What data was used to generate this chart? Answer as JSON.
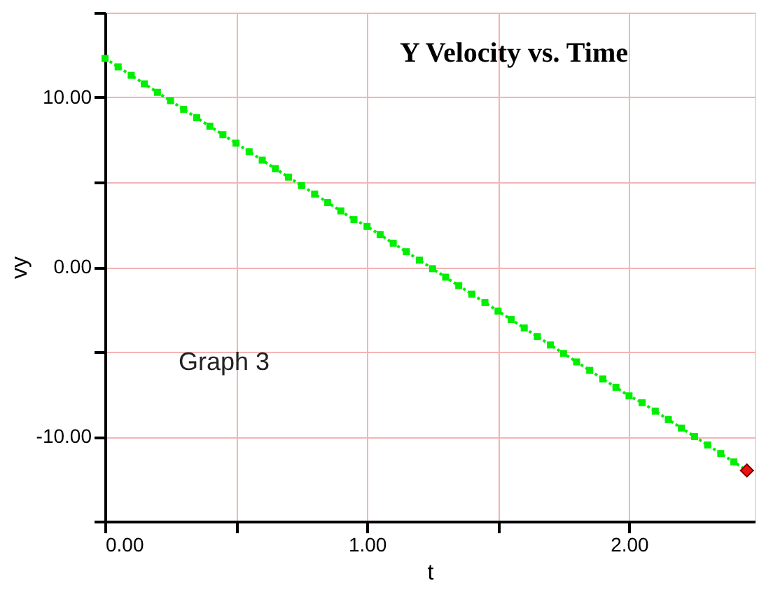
{
  "chart_data": {
    "type": "line",
    "title": "Y Velocity vs. Time",
    "xlabel": "t",
    "ylabel": "vy",
    "xlim": [
      0,
      2.48
    ],
    "ylim": [
      -15,
      15
    ],
    "xticks": [
      {
        "value": 0,
        "label": "0.00"
      },
      {
        "value": 0.5,
        "label": null
      },
      {
        "value": 1,
        "label": "1.00"
      },
      {
        "value": 1.5,
        "label": null
      },
      {
        "value": 2,
        "label": "2.00"
      }
    ],
    "yticks": [
      {
        "value": -15,
        "label": null
      },
      {
        "value": -10,
        "label": "-10.00"
      },
      {
        "value": -5,
        "label": null
      },
      {
        "value": 0,
        "label": "0.00"
      },
      {
        "value": 5,
        "label": null
      },
      {
        "value": 10,
        "label": "10.00"
      },
      {
        "value": 15,
        "label": null
      }
    ],
    "grid": true,
    "line_style": "dotted",
    "annotations": [
      "Graph 3"
    ],
    "series": [
      {
        "color": "#00ee00",
        "marker": "square",
        "x": [
          0,
          0.05,
          0.1,
          0.15,
          0.2,
          0.25,
          0.3,
          0.35,
          0.4,
          0.45,
          0.5,
          0.55,
          0.6,
          0.65,
          0.7,
          0.75,
          0.8,
          0.85,
          0.9,
          0.95,
          1,
          1.05,
          1.1,
          1.15,
          1.2,
          1.25,
          1.3,
          1.35,
          1.4,
          1.45,
          1.5,
          1.55,
          1.6,
          1.65,
          1.7,
          1.75,
          1.8,
          1.85,
          1.9,
          1.95,
          2,
          2.05,
          2.1,
          2.15,
          2.2,
          2.25,
          2.3,
          2.35,
          2.4,
          2.45
        ],
        "values": [
          12.3,
          11.8,
          11.3,
          10.8,
          10.3,
          9.8,
          9.3,
          8.8,
          8.3,
          7.8,
          7.3,
          6.8,
          6.3,
          5.8,
          5.3,
          4.8,
          4.3,
          3.8,
          3.3,
          2.8,
          2.4,
          1.9,
          1.4,
          0.9,
          0.4,
          -0.1,
          -0.6,
          -1.1,
          -1.6,
          -2.1,
          -2.6,
          -3.1,
          -3.6,
          -4.1,
          -4.6,
          -5.1,
          -5.6,
          -6.1,
          -6.6,
          -7.1,
          -7.6,
          -8.0,
          -8.5,
          -9.0,
          -9.5,
          -10.0,
          -10.5,
          -11.0,
          -11.5,
          -12.0
        ]
      },
      {
        "type": "scatter",
        "color": "#ee1111",
        "marker": "diamond",
        "x": [
          2.45
        ],
        "values": [
          -12.0
        ]
      }
    ]
  }
}
